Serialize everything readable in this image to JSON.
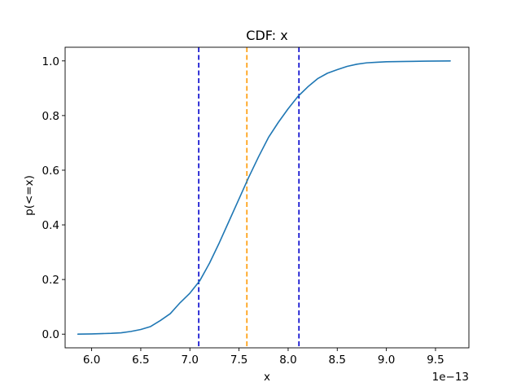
{
  "chart_data": {
    "type": "line",
    "title": "CDF: x",
    "xlabel": "x",
    "ylabel": "p(<=x)",
    "x_offset_text": "1e−13",
    "xlim": [
      5.73,
      9.84
    ],
    "ylim": [
      -0.05,
      1.05
    ],
    "x_ticks": [
      6.0,
      6.5,
      7.0,
      7.5,
      8.0,
      8.5,
      9.0,
      9.5
    ],
    "x_tick_labels": [
      "6.0",
      "6.5",
      "7.0",
      "7.5",
      "8.0",
      "8.5",
      "9.0",
      "9.5"
    ],
    "y_ticks": [
      0.0,
      0.2,
      0.4,
      0.6,
      0.8,
      1.0
    ],
    "y_tick_labels": [
      "0.0",
      "0.2",
      "0.4",
      "0.6",
      "0.8",
      "1.0"
    ],
    "grid": false,
    "series": [
      {
        "color": "#1f77b4",
        "x": [
          5.86,
          6.0,
          6.1,
          6.2,
          6.3,
          6.4,
          6.5,
          6.6,
          6.7,
          6.8,
          6.9,
          7.0,
          7.1,
          7.2,
          7.3,
          7.4,
          7.5,
          7.6,
          7.7,
          7.8,
          7.9,
          8.0,
          8.1,
          8.2,
          8.3,
          8.4,
          8.5,
          8.6,
          8.7,
          8.8,
          8.9,
          9.0,
          9.2,
          9.4,
          9.65
        ],
        "y": [
          0.0,
          0.001,
          0.002,
          0.003,
          0.005,
          0.01,
          0.017,
          0.028,
          0.05,
          0.075,
          0.115,
          0.15,
          0.195,
          0.26,
          0.335,
          0.415,
          0.495,
          0.575,
          0.65,
          0.72,
          0.775,
          0.825,
          0.87,
          0.905,
          0.935,
          0.955,
          0.968,
          0.98,
          0.988,
          0.993,
          0.995,
          0.997,
          0.998,
          0.999,
          1.0
        ]
      }
    ],
    "vlines": [
      {
        "x": 7.09,
        "color": "#0000cc",
        "style": "dashed"
      },
      {
        "x": 7.58,
        "color": "#ff9900",
        "style": "dashed"
      },
      {
        "x": 8.11,
        "color": "#0000cc",
        "style": "dashed"
      }
    ]
  }
}
